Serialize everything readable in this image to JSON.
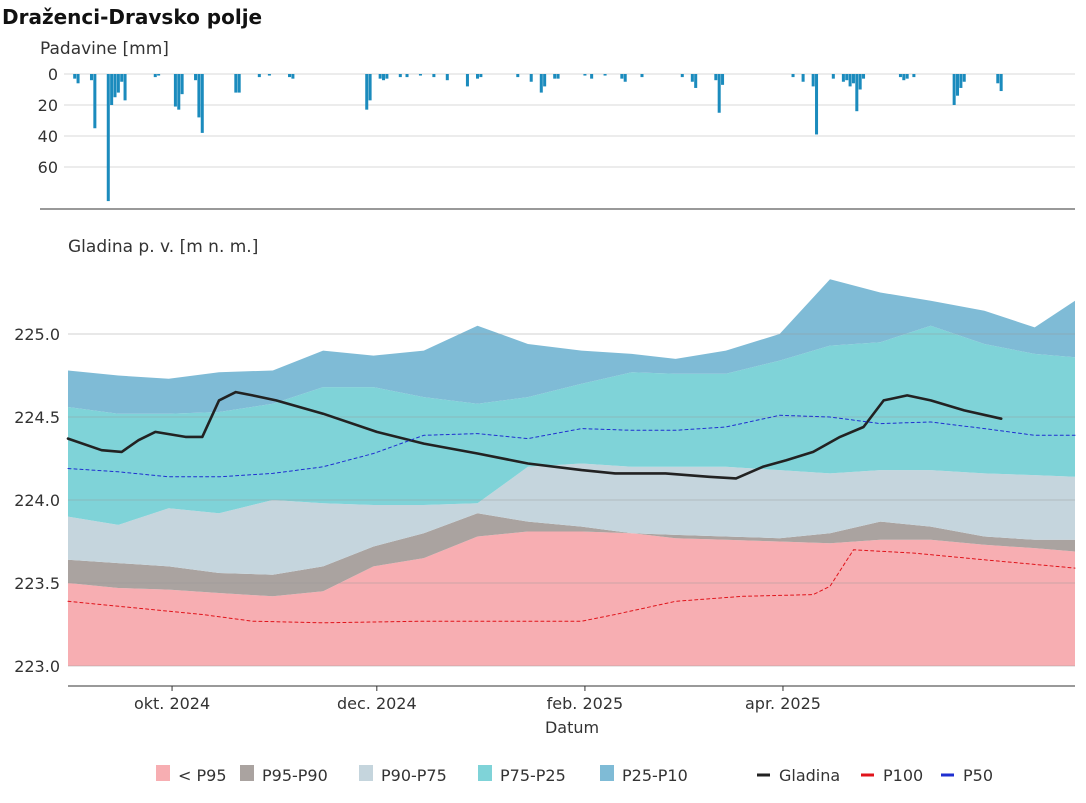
{
  "title": "Draženci-Dravsko polje",
  "colors": {
    "p95_below": "#f7aeb2",
    "p95_p90": "#aaa3a0",
    "p90_p75": "#c5d5dd",
    "p75_p25": "#7fd3d8",
    "p25_p10": "#7fbbd6",
    "gladina": "#222222",
    "p100": "#e0141b",
    "p50": "#1f2fd0",
    "precip": "#1b8bbd",
    "grid": "#d9d9d9"
  },
  "chart_data": [
    {
      "type": "bar",
      "name": "precipitation",
      "ylabel": "Padavine [mm]",
      "yaxis_inverted": true,
      "ylim": [
        0,
        85
      ],
      "yticks": [
        0,
        20,
        40,
        60
      ],
      "x_start": "2024-08-31",
      "x_end": "2025-06-27",
      "precip": [
        [
          "2024-09-02",
          3
        ],
        [
          "2024-09-03",
          6
        ],
        [
          "2024-09-07",
          4
        ],
        [
          "2024-09-08",
          35
        ],
        [
          "2024-09-12",
          82
        ],
        [
          "2024-09-13",
          20
        ],
        [
          "2024-09-14",
          15
        ],
        [
          "2024-09-15",
          12
        ],
        [
          "2024-09-16",
          5
        ],
        [
          "2024-09-17",
          17
        ],
        [
          "2024-09-26",
          2
        ],
        [
          "2024-09-27",
          1
        ],
        [
          "2024-10-02",
          21
        ],
        [
          "2024-10-03",
          23
        ],
        [
          "2024-10-04",
          13
        ],
        [
          "2024-10-08",
          4
        ],
        [
          "2024-10-09",
          28
        ],
        [
          "2024-10-10",
          38
        ],
        [
          "2024-10-20",
          12
        ],
        [
          "2024-10-21",
          12
        ],
        [
          "2024-10-27",
          2
        ],
        [
          "2024-10-30",
          1
        ],
        [
          "2024-11-05",
          2
        ],
        [
          "2024-11-06",
          3
        ],
        [
          "2024-11-28",
          23
        ],
        [
          "2024-11-29",
          17
        ],
        [
          "2024-12-02",
          3
        ],
        [
          "2024-12-03",
          4
        ],
        [
          "2024-12-04",
          3
        ],
        [
          "2024-12-08",
          2
        ],
        [
          "2024-12-10",
          2
        ],
        [
          "2024-12-14",
          1
        ],
        [
          "2024-12-18",
          2
        ],
        [
          "2024-12-22",
          4
        ],
        [
          "2024-12-28",
          8
        ],
        [
          "2024-12-31",
          3
        ],
        [
          "2025-01-01",
          2
        ],
        [
          "2025-01-12",
          2
        ],
        [
          "2025-01-16",
          5
        ],
        [
          "2025-01-19",
          12
        ],
        [
          "2025-01-20",
          8
        ],
        [
          "2025-01-23",
          3
        ],
        [
          "2025-01-24",
          3
        ],
        [
          "2025-02-01",
          1
        ],
        [
          "2025-02-03",
          3
        ],
        [
          "2025-02-07",
          1
        ],
        [
          "2025-02-12",
          3
        ],
        [
          "2025-02-13",
          5
        ],
        [
          "2025-02-18",
          2
        ],
        [
          "2025-03-02",
          2
        ],
        [
          "2025-03-05",
          5
        ],
        [
          "2025-03-06",
          9
        ],
        [
          "2025-03-12",
          4
        ],
        [
          "2025-03-13",
          25
        ],
        [
          "2025-03-14",
          7
        ],
        [
          "2025-04-04",
          2
        ],
        [
          "2025-04-07",
          5
        ],
        [
          "2025-04-10",
          8
        ],
        [
          "2025-04-11",
          39
        ],
        [
          "2025-04-16",
          3
        ],
        [
          "2025-04-19",
          5
        ],
        [
          "2025-04-20",
          4
        ],
        [
          "2025-04-21",
          8
        ],
        [
          "2025-04-22",
          6
        ],
        [
          "2025-04-23",
          24
        ],
        [
          "2025-04-24",
          10
        ],
        [
          "2025-04-25",
          3
        ],
        [
          "2025-05-06",
          2
        ],
        [
          "2025-05-07",
          4
        ],
        [
          "2025-05-08",
          3
        ],
        [
          "2025-05-10",
          2
        ],
        [
          "2025-05-22",
          20
        ],
        [
          "2025-05-23",
          14
        ],
        [
          "2025-05-24",
          9
        ],
        [
          "2025-05-25",
          5
        ],
        [
          "2025-06-04",
          6
        ],
        [
          "2025-06-05",
          11
        ]
      ]
    },
    {
      "type": "area",
      "name": "groundwater",
      "ylabel": "Gladina p. v. [m n. m.]",
      "xlabel": "Datum",
      "ylim": [
        222.95,
        225.3
      ],
      "yticks": [
        223.0,
        223.5,
        224.0,
        224.5,
        225.0
      ],
      "ytick_labels": [
        "223.0",
        "223.5",
        "224.0",
        "224.5",
        "225.0"
      ],
      "xticks": [
        {
          "date": "2024-10-01",
          "label": "okt. 2024"
        },
        {
          "date": "2024-12-01",
          "label": "dec. 2024"
        },
        {
          "date": "2025-02-01",
          "label": "feb. 2025"
        },
        {
          "date": "2025-04-01",
          "label": "apr. 2025"
        }
      ],
      "x_start": "2024-08-31",
      "x_end": "2025-06-27",
      "dates": [
        "2024-08-31",
        "2024-09-15",
        "2024-09-30",
        "2024-10-15",
        "2024-10-31",
        "2024-11-15",
        "2024-11-30",
        "2024-12-15",
        "2024-12-31",
        "2025-01-15",
        "2025-01-31",
        "2025-02-15",
        "2025-02-28",
        "2025-03-15",
        "2025-03-31",
        "2025-04-15",
        "2025-04-30",
        "2025-05-15",
        "2025-05-31",
        "2025-06-15",
        "2025-06-27"
      ],
      "bands": [
        {
          "name": "< P95",
          "color_key": "p95_below",
          "lower": [
            223.0,
            223.0,
            223.0,
            223.0,
            223.0,
            223.0,
            223.0,
            223.0,
            223.0,
            223.0,
            223.0,
            223.0,
            223.0,
            223.0,
            223.0,
            223.0,
            223.0,
            223.0,
            223.0,
            223.0,
            223.0
          ],
          "upper": [
            223.5,
            223.47,
            223.46,
            223.44,
            223.42,
            223.45,
            223.6,
            223.65,
            223.78,
            223.81,
            223.81,
            223.8,
            223.77,
            223.76,
            223.75,
            223.74,
            223.76,
            223.76,
            223.73,
            223.71,
            223.69
          ]
        },
        {
          "name": "P95-P90",
          "color_key": "p95_p90",
          "lower": [
            223.5,
            223.47,
            223.46,
            223.44,
            223.42,
            223.45,
            223.6,
            223.65,
            223.78,
            223.81,
            223.81,
            223.8,
            223.77,
            223.76,
            223.75,
            223.74,
            223.76,
            223.76,
            223.73,
            223.71,
            223.69
          ],
          "upper": [
            223.64,
            223.62,
            223.6,
            223.56,
            223.55,
            223.6,
            223.72,
            223.8,
            223.92,
            223.87,
            223.84,
            223.8,
            223.79,
            223.78,
            223.77,
            223.8,
            223.87,
            223.84,
            223.78,
            223.76,
            223.76
          ]
        },
        {
          "name": "P90-P75",
          "color_key": "p90_p75",
          "lower": [
            223.64,
            223.62,
            223.6,
            223.56,
            223.55,
            223.6,
            223.72,
            223.8,
            223.92,
            223.87,
            223.84,
            223.8,
            223.79,
            223.78,
            223.77,
            223.8,
            223.87,
            223.84,
            223.78,
            223.76,
            223.76
          ],
          "upper": [
            223.9,
            223.85,
            223.95,
            223.92,
            224.0,
            223.98,
            223.97,
            223.97,
            223.98,
            224.2,
            224.22,
            224.2,
            224.2,
            224.2,
            224.18,
            224.16,
            224.18,
            224.18,
            224.16,
            224.15,
            224.14
          ]
        },
        {
          "name": "P75-P25",
          "color_key": "p75_p25",
          "lower": [
            223.9,
            223.85,
            223.95,
            223.92,
            224.0,
            223.98,
            223.97,
            223.97,
            223.98,
            224.2,
            224.22,
            224.2,
            224.2,
            224.2,
            224.18,
            224.16,
            224.18,
            224.18,
            224.16,
            224.15,
            224.14
          ]
        },
        {
          "name": "P25-P10",
          "color_key": "p25_p10",
          "lower": [
            224.56,
            224.52,
            224.52,
            224.53,
            224.58,
            224.68,
            224.68,
            224.62,
            224.58,
            224.62,
            224.7,
            224.77,
            224.76,
            224.76,
            224.84,
            224.93,
            224.95,
            225.05,
            224.94,
            224.88,
            224.86
          ],
          "upper": [
            224.78,
            224.75,
            224.73,
            224.77,
            224.78,
            224.9,
            224.87,
            224.9,
            225.05,
            224.94,
            224.9,
            224.88,
            224.85,
            224.9,
            225.0,
            225.33,
            225.25,
            225.2,
            225.14,
            225.04,
            225.2
          ]
        }
      ],
      "p75_p25_upper": [
        224.56,
        224.52,
        224.52,
        224.53,
        224.58,
        224.68,
        224.68,
        224.62,
        224.58,
        224.62,
        224.7,
        224.77,
        224.76,
        224.76,
        224.84,
        224.93,
        224.95,
        225.05,
        224.94,
        224.88,
        224.86
      ],
      "lines": [
        {
          "name": "Gladina",
          "color_key": "gladina",
          "style": "solid",
          "points": [
            [
              "2024-08-31",
              224.37
            ],
            [
              "2024-09-10",
              224.3
            ],
            [
              "2024-09-16",
              224.29
            ],
            [
              "2024-09-21",
              224.36
            ],
            [
              "2024-09-26",
              224.41
            ],
            [
              "2024-10-05",
              224.38
            ],
            [
              "2024-10-10",
              224.38
            ],
            [
              "2024-10-15",
              224.6
            ],
            [
              "2024-10-20",
              224.65
            ],
            [
              "2024-10-25",
              224.63
            ],
            [
              "2024-11-01",
              224.6
            ],
            [
              "2024-11-15",
              224.52
            ],
            [
              "2024-12-01",
              224.41
            ],
            [
              "2024-12-15",
              224.34
            ],
            [
              "2024-12-31",
              224.28
            ],
            [
              "2025-01-15",
              224.22
            ],
            [
              "2025-01-31",
              224.18
            ],
            [
              "2025-02-10",
              224.16
            ],
            [
              "2025-02-25",
              224.16
            ],
            [
              "2025-03-10",
              224.14
            ],
            [
              "2025-03-18",
              224.13
            ],
            [
              "2025-03-26",
              224.2
            ],
            [
              "2025-04-02",
              224.24
            ],
            [
              "2025-04-10",
              224.29
            ],
            [
              "2025-04-18",
              224.38
            ],
            [
              "2025-04-25",
              224.44
            ],
            [
              "2025-05-01",
              224.6
            ],
            [
              "2025-05-08",
              224.63
            ],
            [
              "2025-05-15",
              224.6
            ],
            [
              "2025-05-25",
              224.54
            ],
            [
              "2025-06-05",
              224.49
            ]
          ]
        },
        {
          "name": "P100",
          "color_key": "p100",
          "style": "dashed",
          "points": [
            [
              "2024-08-31",
              223.39
            ],
            [
              "2024-09-20",
              223.35
            ],
            [
              "2024-10-10",
              223.31
            ],
            [
              "2024-10-25",
              223.27
            ],
            [
              "2024-11-15",
              223.26
            ],
            [
              "2024-12-15",
              223.27
            ],
            [
              "2025-01-15",
              223.27
            ],
            [
              "2025-01-31",
              223.27
            ],
            [
              "2025-02-10",
              223.31
            ],
            [
              "2025-02-28",
              223.39
            ],
            [
              "2025-03-20",
              223.42
            ],
            [
              "2025-04-10",
              223.43
            ],
            [
              "2025-04-15",
              223.48
            ],
            [
              "2025-04-22",
              223.7
            ],
            [
              "2025-05-10",
              223.68
            ],
            [
              "2025-05-31",
              223.64
            ],
            [
              "2025-06-27",
              223.59
            ]
          ]
        },
        {
          "name": "P50",
          "color_key": "p50",
          "style": "dashed",
          "points": [
            [
              "2024-08-31",
              224.19
            ],
            [
              "2024-09-15",
              224.17
            ],
            [
              "2024-09-30",
              224.14
            ],
            [
              "2024-10-15",
              224.14
            ],
            [
              "2024-10-31",
              224.16
            ],
            [
              "2024-11-15",
              224.2
            ],
            [
              "2024-11-30",
              224.28
            ],
            [
              "2024-12-15",
              224.39
            ],
            [
              "2024-12-31",
              224.4
            ],
            [
              "2025-01-15",
              224.37
            ],
            [
              "2025-01-31",
              224.43
            ],
            [
              "2025-02-15",
              224.42
            ],
            [
              "2025-02-28",
              224.42
            ],
            [
              "2025-03-15",
              224.44
            ],
            [
              "2025-03-31",
              224.51
            ],
            [
              "2025-04-15",
              224.5
            ],
            [
              "2025-04-30",
              224.46
            ],
            [
              "2025-05-15",
              224.47
            ],
            [
              "2025-05-31",
              224.43
            ],
            [
              "2025-06-15",
              224.39
            ],
            [
              "2025-06-27",
              224.39
            ]
          ]
        }
      ]
    }
  ],
  "legend": {
    "items": [
      {
        "label": "< P95",
        "kind": "box",
        "color_key": "p95_below"
      },
      {
        "label": "P95-P90",
        "kind": "box",
        "color_key": "p95_p90"
      },
      {
        "label": "P90-P75",
        "kind": "box",
        "color_key": "p90_p75"
      },
      {
        "label": "P75-P25",
        "kind": "box",
        "color_key": "p75_p25"
      },
      {
        "label": "P25-P10",
        "kind": "box",
        "color_key": "p25_p10"
      },
      {
        "label": "Gladina",
        "kind": "line",
        "color_key": "gladina"
      },
      {
        "label": "P100",
        "kind": "line",
        "color_key": "p100"
      },
      {
        "label": "P50",
        "kind": "line",
        "color_key": "p50"
      }
    ]
  }
}
